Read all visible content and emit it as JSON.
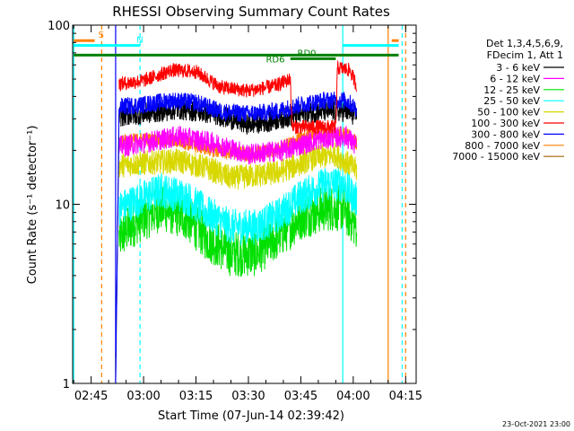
{
  "chart_data": {
    "type": "line",
    "title": "RHESSI Observing Summary Count Rates",
    "xlabel": "Start Time (07-Jun-14 02:39:42)",
    "ylabel": "Count Rate (s⁻¹ detector⁻¹)",
    "footer": "23-Oct-2021 23:00",
    "y_scale": "log",
    "ylim": [
      1,
      100
    ],
    "xlim": [
      "02:39:42",
      "04:18:00"
    ],
    "grid": false,
    "legend_position": "right",
    "legend_header": [
      "Det 1,3,4,5,6,9,",
      "FDecim 1, Att 1"
    ],
    "y_ticks": [
      {
        "value": 1,
        "label": "1"
      },
      {
        "value": 10,
        "label": "10"
      },
      {
        "value": 100,
        "label": "100"
      }
    ],
    "x_ticks": [
      {
        "time": "02:45",
        "label": "02:45"
      },
      {
        "time": "03:00",
        "label": "03:00"
      },
      {
        "time": "03:15",
        "label": "03:15"
      },
      {
        "time": "03:30",
        "label": "03:30"
      },
      {
        "time": "03:45",
        "label": "03:45"
      },
      {
        "time": "04:00",
        "label": "04:00"
      },
      {
        "time": "04:15",
        "label": "04:15"
      }
    ],
    "series": [
      {
        "name": "3 - 6 keV",
        "color": "#000000",
        "noise": 0.06,
        "points": [
          [
            "02:52",
            1.0
          ],
          [
            "02:53",
            31
          ],
          [
            "03:00",
            32
          ],
          [
            "03:10",
            34
          ],
          [
            "03:20",
            32
          ],
          [
            "03:30",
            28
          ],
          [
            "03:36",
            29
          ],
          [
            "03:42",
            31
          ],
          [
            "03:50",
            33
          ],
          [
            "03:58",
            33
          ],
          [
            "04:01",
            31
          ]
        ]
      },
      {
        "name": "6 - 12 keV",
        "color": "#ff00ff",
        "noise": 0.06,
        "points": [
          [
            "02:53",
            21
          ],
          [
            "03:00",
            22
          ],
          [
            "03:10",
            24
          ],
          [
            "03:20",
            22
          ],
          [
            "03:30",
            19
          ],
          [
            "03:40",
            20
          ],
          [
            "03:50",
            23
          ],
          [
            "03:58",
            24
          ],
          [
            "04:01",
            21
          ]
        ]
      },
      {
        "name": "12 - 25 keV",
        "color": "#00e000",
        "noise": 0.13,
        "points": [
          [
            "02:53",
            6.5
          ],
          [
            "02:58",
            8
          ],
          [
            "03:05",
            9.5
          ],
          [
            "03:12",
            8.5
          ],
          [
            "03:18",
            6.5
          ],
          [
            "03:25",
            5.3
          ],
          [
            "03:32",
            5.3
          ],
          [
            "03:38",
            6.5
          ],
          [
            "03:45",
            8.5
          ],
          [
            "03:52",
            9.5
          ],
          [
            "03:57",
            9.5
          ],
          [
            "04:01",
            7.5
          ]
        ]
      },
      {
        "name": "25 - 50 keV",
        "color": "#00ffff",
        "noise": 0.1,
        "points": [
          [
            "02:53",
            9.5
          ],
          [
            "02:58",
            10.5
          ],
          [
            "03:05",
            12
          ],
          [
            "03:12",
            11
          ],
          [
            "03:18",
            9
          ],
          [
            "03:25",
            7.5
          ],
          [
            "03:32",
            7.5
          ],
          [
            "03:38",
            8.5
          ],
          [
            "03:45",
            11
          ],
          [
            "03:52",
            13
          ],
          [
            "03:57",
            13
          ],
          [
            "04:01",
            10.5
          ]
        ]
      },
      {
        "name": "50 - 100 keV",
        "color": "#d8d800",
        "noise": 0.07,
        "points": [
          [
            "02:53",
            16.5
          ],
          [
            "03:00",
            17
          ],
          [
            "03:10",
            17.5
          ],
          [
            "03:18",
            16
          ],
          [
            "03:25",
            14
          ],
          [
            "03:32",
            14.5
          ],
          [
            "03:38",
            15
          ],
          [
            "03:42",
            16
          ],
          [
            "03:48",
            18
          ],
          [
            "03:55",
            19
          ],
          [
            "04:01",
            15.5
          ]
        ]
      },
      {
        "name": "100 - 300 keV",
        "color": "#ff0000",
        "noise": 0.04,
        "points": [
          [
            "02:53",
            47
          ],
          [
            "03:00",
            49
          ],
          [
            "03:08",
            56
          ],
          [
            "03:15",
            55
          ],
          [
            "03:22",
            45
          ],
          [
            "03:30",
            43
          ],
          [
            "03:38",
            46
          ],
          [
            "03:42",
            50
          ],
          [
            "03:42.5",
            27
          ],
          [
            "03:50",
            27
          ],
          [
            "03:55",
            27
          ],
          [
            "03:55.5",
            58
          ],
          [
            "03:59",
            56
          ],
          [
            "04:01",
            46
          ]
        ]
      },
      {
        "name": "300 - 800 keV",
        "color": "#0000ff",
        "noise": 0.05,
        "points": [
          [
            "02:52",
            1.0
          ],
          [
            "02:53",
            35
          ],
          [
            "03:00",
            36
          ],
          [
            "03:08",
            38
          ],
          [
            "03:15",
            37
          ],
          [
            "03:22",
            33
          ],
          [
            "03:30",
            32
          ],
          [
            "03:38",
            33
          ],
          [
            "03:45",
            36
          ],
          [
            "03:52",
            38
          ],
          [
            "03:58",
            38
          ],
          [
            "04:01",
            34
          ]
        ]
      },
      {
        "name": "800 - 7000 keV",
        "color": "#ff8000",
        "noise": 0.04,
        "points": [
          [
            "02:53",
            22.5
          ],
          [
            "03:00",
            23
          ],
          [
            "03:10",
            22.5
          ],
          [
            "03:20",
            20
          ],
          [
            "03:30",
            19
          ],
          [
            "03:38",
            20
          ],
          [
            "03:44",
            23
          ],
          [
            "03:50",
            25
          ],
          [
            "03:58",
            25
          ],
          [
            "04:01",
            22
          ]
        ]
      },
      {
        "name": "7000 - 15000 keV",
        "color": "#a06400",
        "noise": 0,
        "points": []
      }
    ],
    "annotations": {
      "bars": [
        {
          "label": "S",
          "color": "#ff8000",
          "y": 82,
          "segments": [
            [
              "02:40",
              "02:46"
            ],
            [
              "04:11",
              "04:13"
            ]
          ],
          "label_time": "02:47"
        },
        {
          "label": "N",
          "color": "#00ffff",
          "y": 77,
          "segments": [
            [
              "02:40",
              "02:59"
            ],
            [
              "03:57",
              "04:13"
            ]
          ],
          "label_time": "02:58"
        },
        {
          "label": "",
          "color": "#008000",
          "y": 68,
          "segments": [
            [
              "02:40",
              "04:13"
            ]
          ]
        },
        {
          "label": "RD0",
          "color": "#008000",
          "y": 65,
          "segments": [
            [
              "03:42",
              "03:55"
            ]
          ],
          "label_time": "03:44"
        },
        {
          "label": "RD6",
          "color": "#008000",
          "y": 60,
          "segments": [],
          "label_time": "03:35"
        }
      ],
      "vertical_lines": [
        {
          "time": "02:40",
          "color": "#00ffff",
          "style": "solid"
        },
        {
          "time": "02:48",
          "color": "#ff8000",
          "style": "dashed"
        },
        {
          "time": "02:59",
          "color": "#00ffff",
          "style": "dashed"
        },
        {
          "time": "03:57",
          "color": "#00ffff",
          "style": "solid"
        },
        {
          "time": "04:10",
          "color": "#ff8000",
          "style": "solid"
        },
        {
          "time": "04:14",
          "color": "#00ffff",
          "style": "dashed"
        },
        {
          "time": "04:15",
          "color": "#ff8000",
          "style": "dashed"
        },
        {
          "time": "02:52",
          "color": "#0000ff",
          "style": "solid"
        }
      ]
    }
  }
}
